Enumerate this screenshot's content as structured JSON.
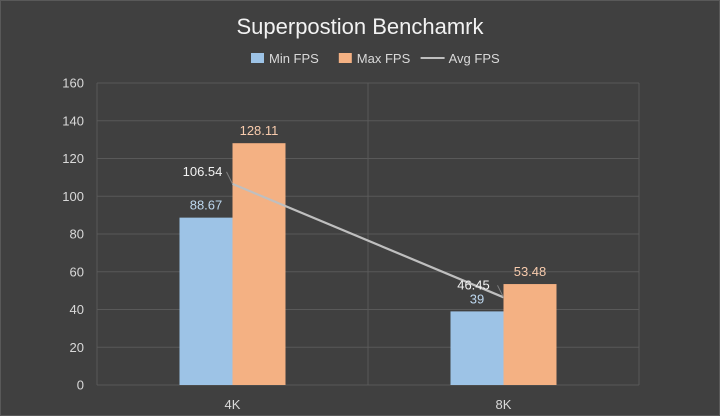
{
  "chart_data": {
    "type": "bar",
    "title": "Superpostion Benchamrk",
    "xlabel": "",
    "ylabel": "",
    "ylim": [
      0,
      160
    ],
    "yticks": [
      "0",
      "20",
      "40",
      "60",
      "80",
      "100",
      "120",
      "140",
      "160"
    ],
    "categories": [
      "4K",
      "8K"
    ],
    "legend_position": "top",
    "grid": true,
    "series": [
      {
        "name": "Min FPS",
        "type": "bar",
        "values": [
          88.67,
          39
        ],
        "labels": [
          "88.67",
          "39"
        ],
        "color": "#9dc3e6",
        "label_color": "#bdd7ee"
      },
      {
        "name": "Max FPS",
        "type": "bar",
        "values": [
          128.11,
          53.48
        ],
        "labels": [
          "128.11",
          "53.48"
        ],
        "color": "#f4b183",
        "label_color": "#f8cbad"
      },
      {
        "name": "Avg FPS",
        "type": "line",
        "values": [
          106.54,
          46.45
        ],
        "labels": [
          "106.54",
          "46.45"
        ],
        "color": "#bfbfbf",
        "label_color": "#f2f2f2"
      }
    ],
    "colors": {
      "background": "#404040",
      "grid": "#595959",
      "text": "#d9d9d9",
      "title": "#f2f2f2"
    }
  }
}
